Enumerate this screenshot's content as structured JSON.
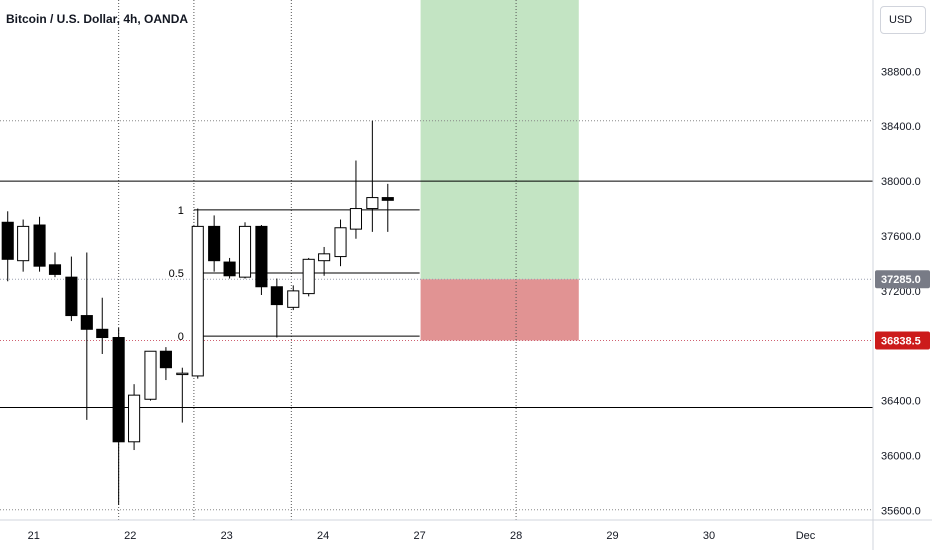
{
  "header": {
    "title": "Bitcoin / U.S. Dollar, 4h, OANDA",
    "currency": "USD"
  },
  "chart_data": {
    "type": "candlestick",
    "ylim": [
      35530,
      39320
    ],
    "xlim": [
      -0.9,
      8.15
    ],
    "y_ticks": [
      35600,
      36000,
      36400,
      37200,
      37600,
      38000,
      38400,
      38800
    ],
    "y_tick_labels": [
      "35600.0",
      "36000.0",
      "36400.0",
      "37200.0",
      "37600.0",
      "38000.0",
      "38400.0",
      "38800.0"
    ],
    "x_ticks": [
      {
        "x": -0.55,
        "label": "21"
      },
      {
        "x": 0.45,
        "label": "22"
      },
      {
        "x": 1.45,
        "label": "23"
      },
      {
        "x": 2.45,
        "label": "24"
      },
      {
        "x": 3.45,
        "label": "27"
      },
      {
        "x": 4.45,
        "label": "28"
      },
      {
        "x": 5.45,
        "label": "29"
      },
      {
        "x": 6.45,
        "label": "30"
      },
      {
        "x": 7.45,
        "label": "Dec"
      }
    ],
    "price_labels": [
      {
        "value": 37285,
        "label": "37285.0",
        "color": "#787b86"
      },
      {
        "value": 36838.5,
        "label": "36838.5",
        "color": "#cc1b1b"
      }
    ],
    "candles": [
      {
        "x": -0.82,
        "o": 37700,
        "h": 37780,
        "l": 37270,
        "c": 37430
      },
      {
        "x": -0.66,
        "o": 37420,
        "h": 37720,
        "l": 37340,
        "c": 37670
      },
      {
        "x": -0.49,
        "o": 37680,
        "h": 37740,
        "l": 37340,
        "c": 37380
      },
      {
        "x": -0.33,
        "o": 37390,
        "h": 37480,
        "l": 37300,
        "c": 37320
      },
      {
        "x": -0.16,
        "o": 37300,
        "h": 37450,
        "l": 36980,
        "c": 37020
      },
      {
        "x": 0.0,
        "o": 37020,
        "h": 37480,
        "l": 36260,
        "c": 36920
      },
      {
        "x": 0.16,
        "o": 36920,
        "h": 37150,
        "l": 36740,
        "c": 36860
      },
      {
        "x": 0.33,
        "o": 36860,
        "h": 36930,
        "l": 35640,
        "c": 36100
      },
      {
        "x": 0.49,
        "o": 36100,
        "h": 36520,
        "l": 36040,
        "c": 36440
      },
      {
        "x": 0.66,
        "o": 36410,
        "h": 36740,
        "l": 36400,
        "c": 36760
      },
      {
        "x": 0.82,
        "o": 36760,
        "h": 36790,
        "l": 36550,
        "c": 36640
      },
      {
        "x": 0.99,
        "o": 36590,
        "h": 36640,
        "l": 36240,
        "c": 36600
      },
      {
        "x": 1.15,
        "o": 36580,
        "h": 37800,
        "l": 36560,
        "c": 37670
      },
      {
        "x": 1.32,
        "o": 37670,
        "h": 37750,
        "l": 37340,
        "c": 37420
      },
      {
        "x": 1.48,
        "o": 37410,
        "h": 37440,
        "l": 37290,
        "c": 37310
      },
      {
        "x": 1.64,
        "o": 37300,
        "h": 37700,
        "l": 37290,
        "c": 37670
      },
      {
        "x": 1.81,
        "o": 37670,
        "h": 37680,
        "l": 37170,
        "c": 37230
      },
      {
        "x": 1.97,
        "o": 37230,
        "h": 37290,
        "l": 36860,
        "c": 37100
      },
      {
        "x": 2.14,
        "o": 37080,
        "h": 37240,
        "l": 37060,
        "c": 37200
      },
      {
        "x": 2.3,
        "o": 37180,
        "h": 37440,
        "l": 37160,
        "c": 37430
      },
      {
        "x": 2.46,
        "o": 37420,
        "h": 37520,
        "l": 37310,
        "c": 37470
      },
      {
        "x": 2.63,
        "o": 37450,
        "h": 37720,
        "l": 37380,
        "c": 37660
      },
      {
        "x": 2.79,
        "o": 37650,
        "h": 38150,
        "l": 37580,
        "c": 37800
      },
      {
        "x": 2.96,
        "o": 37800,
        "h": 38440,
        "l": 37630,
        "c": 37880
      },
      {
        "x": 3.12,
        "o": 37880,
        "h": 37980,
        "l": 37630,
        "c": 37860
      }
    ],
    "horizontal_lines": [
      {
        "value": 38000,
        "style": "solid"
      },
      {
        "value": 36350,
        "style": "solid"
      },
      {
        "value": 38440,
        "style": "dotted"
      },
      {
        "value": 35605,
        "style": "dotted"
      }
    ],
    "price_dotted_lines": [
      {
        "value": 37285,
        "color": "#9aa0b0"
      },
      {
        "value": 36838.5,
        "color": "#d06070"
      }
    ],
    "fibonacci": {
      "x_start": 1.11,
      "x_end": 3.45,
      "levels": [
        {
          "ratio": "1",
          "value": 37790
        },
        {
          "ratio": "0.5",
          "value": 37330
        },
        {
          "ratio": "0",
          "value": 36870
        }
      ]
    },
    "position_tool": {
      "x_start": 3.46,
      "x_end": 5.1,
      "entry": 37285,
      "target": 39320,
      "stop": 36838.5,
      "profit_color": "#c3e4c3",
      "loss_color": "#e19393"
    },
    "vertical_dotted_lines": [
      0.33,
      1.11,
      2.12,
      4.45
    ],
    "colors": {
      "bull_body": "#ffffff",
      "bear_body": "#000000",
      "wick": "#000000",
      "grid_dotted": "#888888"
    }
  }
}
